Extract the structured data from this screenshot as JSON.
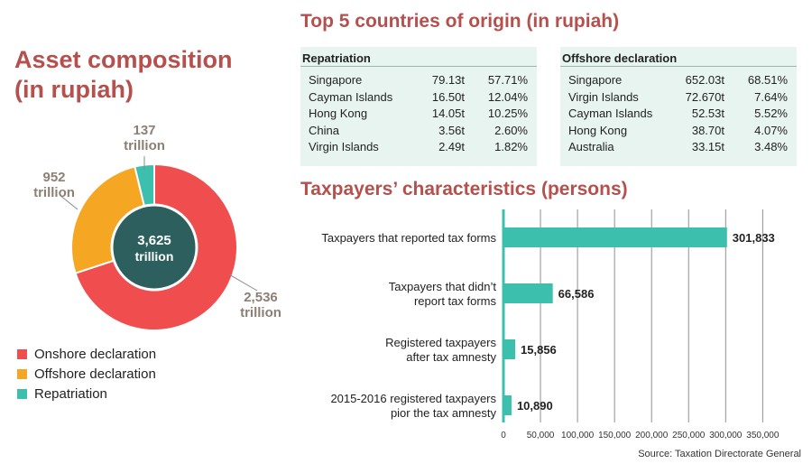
{
  "asset": {
    "title_line1": "Asset composition",
    "title_line2": "(in rupiah)",
    "center_line1": "3,625",
    "center_line2": "trillion",
    "legend": [
      "Onshore declaration",
      "Offshore declaration",
      "Repatriation"
    ],
    "labels": {
      "onshore": [
        "2,536",
        "trillion"
      ],
      "offshore": [
        "952",
        "trillion"
      ],
      "repatriation": [
        "137",
        "trillion"
      ]
    },
    "colors": {
      "onshore": "#ef4d4e",
      "offshore": "#f5a623",
      "repatriation": "#3dbfae",
      "center": "#2d5f5f"
    }
  },
  "top5": {
    "title": "Top 5 countries of origin (in rupiah)",
    "repatriation": {
      "header": "Repatriation",
      "rows": [
        [
          "Singapore",
          "79.13t",
          "57.71%"
        ],
        [
          "Cayman Islands",
          "16.50t",
          "12.04%"
        ],
        [
          "Hong Kong",
          "14.05t",
          "10.25%"
        ],
        [
          "China",
          "3.56t",
          "2.60%"
        ],
        [
          "Virgin Islands",
          "2.49t",
          "1.82%"
        ]
      ]
    },
    "offshore": {
      "header": "Offshore declaration",
      "rows": [
        [
          "Singapore",
          "652.03t",
          "68.51%"
        ],
        [
          "Virgin Islands",
          "72.670t",
          "7.64%"
        ],
        [
          "Cayman Islands",
          "52.53t",
          "5.52%"
        ],
        [
          "Hong Kong",
          "38.70t",
          "4.07%"
        ],
        [
          "Australia",
          "33.15t",
          "3.48%"
        ]
      ]
    }
  },
  "taxpayers": {
    "title": "Taxpayers’ characteristics (persons)",
    "source": "Source: Taxation Directorate General"
  },
  "chart_data": [
    {
      "type": "pie",
      "title": "Asset composition (in rupiah)",
      "center_label": "3,625 trillion",
      "categories": [
        "Onshore declaration",
        "Offshore declaration",
        "Repatriation"
      ],
      "values": [
        2536,
        952,
        137
      ],
      "unit": "trillion"
    },
    {
      "type": "bar",
      "orientation": "horizontal",
      "title": "Taxpayers’ characteristics (persons)",
      "categories": [
        [
          "Taxpayers that reported tax forms"
        ],
        [
          "Taxpayers that didn’t",
          "report tax forms"
        ],
        [
          "Registered taxpayers",
          "after tax amnesty"
        ],
        [
          "2015-2016 registered taxpayers",
          "pior the tax amnesty"
        ]
      ],
      "values": [
        301833,
        66586,
        15856,
        10890
      ],
      "value_labels": [
        "301,833",
        "66,586",
        "15,856",
        "10,890"
      ],
      "xlim": [
        0,
        350000
      ],
      "ticks": [
        0,
        50000,
        100000,
        150000,
        200000,
        250000,
        300000,
        350000
      ],
      "tick_labels": [
        "0",
        "50,000",
        "100,000",
        "150,000",
        "200,000",
        "250,000",
        "300,000",
        "350,000"
      ],
      "grid": true,
      "bar_color": "#3dbfae"
    }
  ]
}
